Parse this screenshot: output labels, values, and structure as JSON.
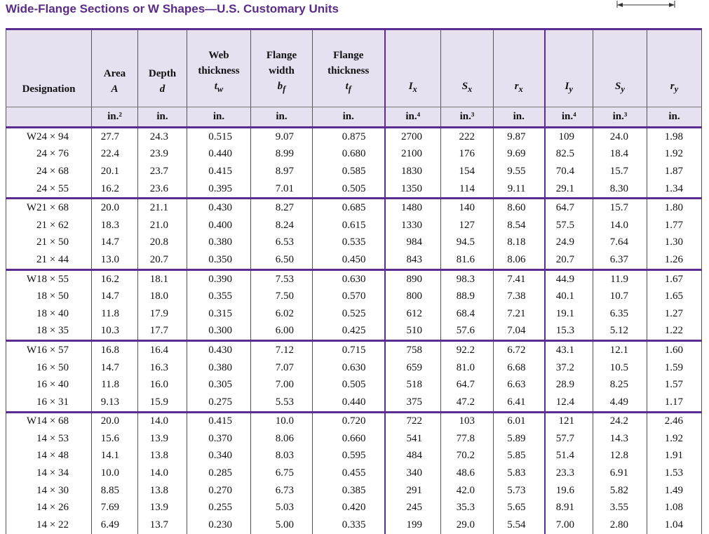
{
  "title": "Wide-Flange Sections or W Shapes—U.S. Customary Units",
  "table": {
    "columns": [
      {
        "label": [
          "Designation"
        ]
      },
      {
        "label": [
          "Area"
        ],
        "symbol": "A",
        "unit": "in.²"
      },
      {
        "label": [
          "Depth"
        ],
        "symbol": "d",
        "unit": "in."
      },
      {
        "label": [
          "Web",
          "thickness"
        ],
        "symbol": "t",
        "sub": "w",
        "unit": "in."
      },
      {
        "label": [
          "Flange",
          "width"
        ],
        "symbol": "b",
        "sub": "f",
        "unit": "in."
      },
      {
        "label": [
          "Flange",
          "thickness"
        ],
        "symbol": "t",
        "sub": "f",
        "unit": "in."
      },
      {
        "symbol": "I",
        "sub": "x",
        "unit": "in.⁴"
      },
      {
        "symbol": "S",
        "sub": "x",
        "unit": "in.³"
      },
      {
        "symbol": "r",
        "sub": "x",
        "unit": "in."
      },
      {
        "symbol": "I",
        "sub": "y",
        "unit": "in.⁴"
      },
      {
        "symbol": "S",
        "sub": "y",
        "unit": "in.³"
      },
      {
        "symbol": "r",
        "sub": "y",
        "unit": "in."
      }
    ],
    "groups": [
      {
        "rows": [
          [
            "W24 × 94",
            "27.7",
            "24.3",
            "0.515",
            "9.07",
            "0.875",
            "2700",
            "222",
            "9.87",
            "109",
            "24.0",
            "1.98"
          ],
          [
            "24 × 76",
            "22.4",
            "23.9",
            "0.440",
            "8.99",
            "0.680",
            "2100",
            "176",
            "9.69",
            "82.5",
            "18.4",
            "1.92"
          ],
          [
            "24 × 68",
            "20.1",
            "23.7",
            "0.415",
            "8.97",
            "0.585",
            "1830",
            "154",
            "9.55",
            "70.4",
            "15.7",
            "1.87"
          ],
          [
            "24 × 55",
            "16.2",
            "23.6",
            "0.395",
            "7.01",
            "0.505",
            "1350",
            "114",
            "9.11",
            "29.1",
            "8.30",
            "1.34"
          ]
        ]
      },
      {
        "rows": [
          [
            "W21 × 68",
            "20.0",
            "21.1",
            "0.430",
            "8.27",
            "0.685",
            "1480",
            "140",
            "8.60",
            "64.7",
            "15.7",
            "1.80"
          ],
          [
            "21 × 62",
            "18.3",
            "21.0",
            "0.400",
            "8.24",
            "0.615",
            "1330",
            "127",
            "8.54",
            "57.5",
            "14.0",
            "1.77"
          ],
          [
            "21 × 50",
            "14.7",
            "20.8",
            "0.380",
            "6.53",
            "0.535",
            "984",
            "94.5",
            "8.18",
            "24.9",
            "7.64",
            "1.30"
          ],
          [
            "21 × 44",
            "13.0",
            "20.7",
            "0.350",
            "6.50",
            "0.450",
            "843",
            "81.6",
            "8.06",
            "20.7",
            "6.37",
            "1.26"
          ]
        ]
      },
      {
        "rows": [
          [
            "W18 × 55",
            "16.2",
            "18.1",
            "0.390",
            "7.53",
            "0.630",
            "890",
            "98.3",
            "7.41",
            "44.9",
            "11.9",
            "1.67"
          ],
          [
            "18 × 50",
            "14.7",
            "18.0",
            "0.355",
            "7.50",
            "0.570",
            "800",
            "88.9",
            "7.38",
            "40.1",
            "10.7",
            "1.65"
          ],
          [
            "18 × 40",
            "11.8",
            "17.9",
            "0.315",
            "6.02",
            "0.525",
            "612",
            "68.4",
            "7.21",
            "19.1",
            "6.35",
            "1.27"
          ],
          [
            "18 × 35",
            "10.3",
            "17.7",
            "0.300",
            "6.00",
            "0.425",
            "510",
            "57.6",
            "7.04",
            "15.3",
            "5.12",
            "1.22"
          ]
        ]
      },
      {
        "rows": [
          [
            "W16 × 57",
            "16.8",
            "16.4",
            "0.430",
            "7.12",
            "0.715",
            "758",
            "92.2",
            "6.72",
            "43.1",
            "12.1",
            "1.60"
          ],
          [
            "16 × 50",
            "14.7",
            "16.3",
            "0.380",
            "7.07",
            "0.630",
            "659",
            "81.0",
            "6.68",
            "37.2",
            "10.5",
            "1.59"
          ],
          [
            "16 × 40",
            "11.8",
            "16.0",
            "0.305",
            "7.00",
            "0.505",
            "518",
            "64.7",
            "6.63",
            "28.9",
            "8.25",
            "1.57"
          ],
          [
            "16 × 31",
            "9.13",
            "15.9",
            "0.275",
            "5.53",
            "0.440",
            "375",
            "47.2",
            "6.41",
            "12.4",
            "4.49",
            "1.17"
          ]
        ]
      },
      {
        "rows": [
          [
            "W14 × 68",
            "20.0",
            "14.0",
            "0.415",
            "10.0",
            "0.720",
            "722",
            "103",
            "6.01",
            "121",
            "24.2",
            "2.46"
          ],
          [
            "14 × 53",
            "15.6",
            "13.9",
            "0.370",
            "8.06",
            "0.660",
            "541",
            "77.8",
            "5.89",
            "57.7",
            "14.3",
            "1.92"
          ],
          [
            "14 × 48",
            "14.1",
            "13.8",
            "0.340",
            "8.03",
            "0.595",
            "484",
            "70.2",
            "5.85",
            "51.4",
            "12.8",
            "1.91"
          ],
          [
            "14 × 34",
            "10.0",
            "14.0",
            "0.285",
            "6.75",
            "0.455",
            "340",
            "48.6",
            "5.83",
            "23.3",
            "6.91",
            "1.53"
          ],
          [
            "14 × 30",
            "8.85",
            "13.8",
            "0.270",
            "6.73",
            "0.385",
            "291",
            "42.0",
            "5.73",
            "19.6",
            "5.82",
            "1.49"
          ],
          [
            "14 × 26",
            "7.69",
            "13.9",
            "0.255",
            "5.03",
            "0.420",
            "245",
            "35.3",
            "5.65",
            "8.91",
            "3.55",
            "1.08"
          ],
          [
            "14 × 22",
            "6.49",
            "13.7",
            "0.230",
            "5.00",
            "0.335",
            "199",
            "29.0",
            "5.54",
            "7.00",
            "2.80",
            "1.04"
          ]
        ]
      }
    ]
  }
}
